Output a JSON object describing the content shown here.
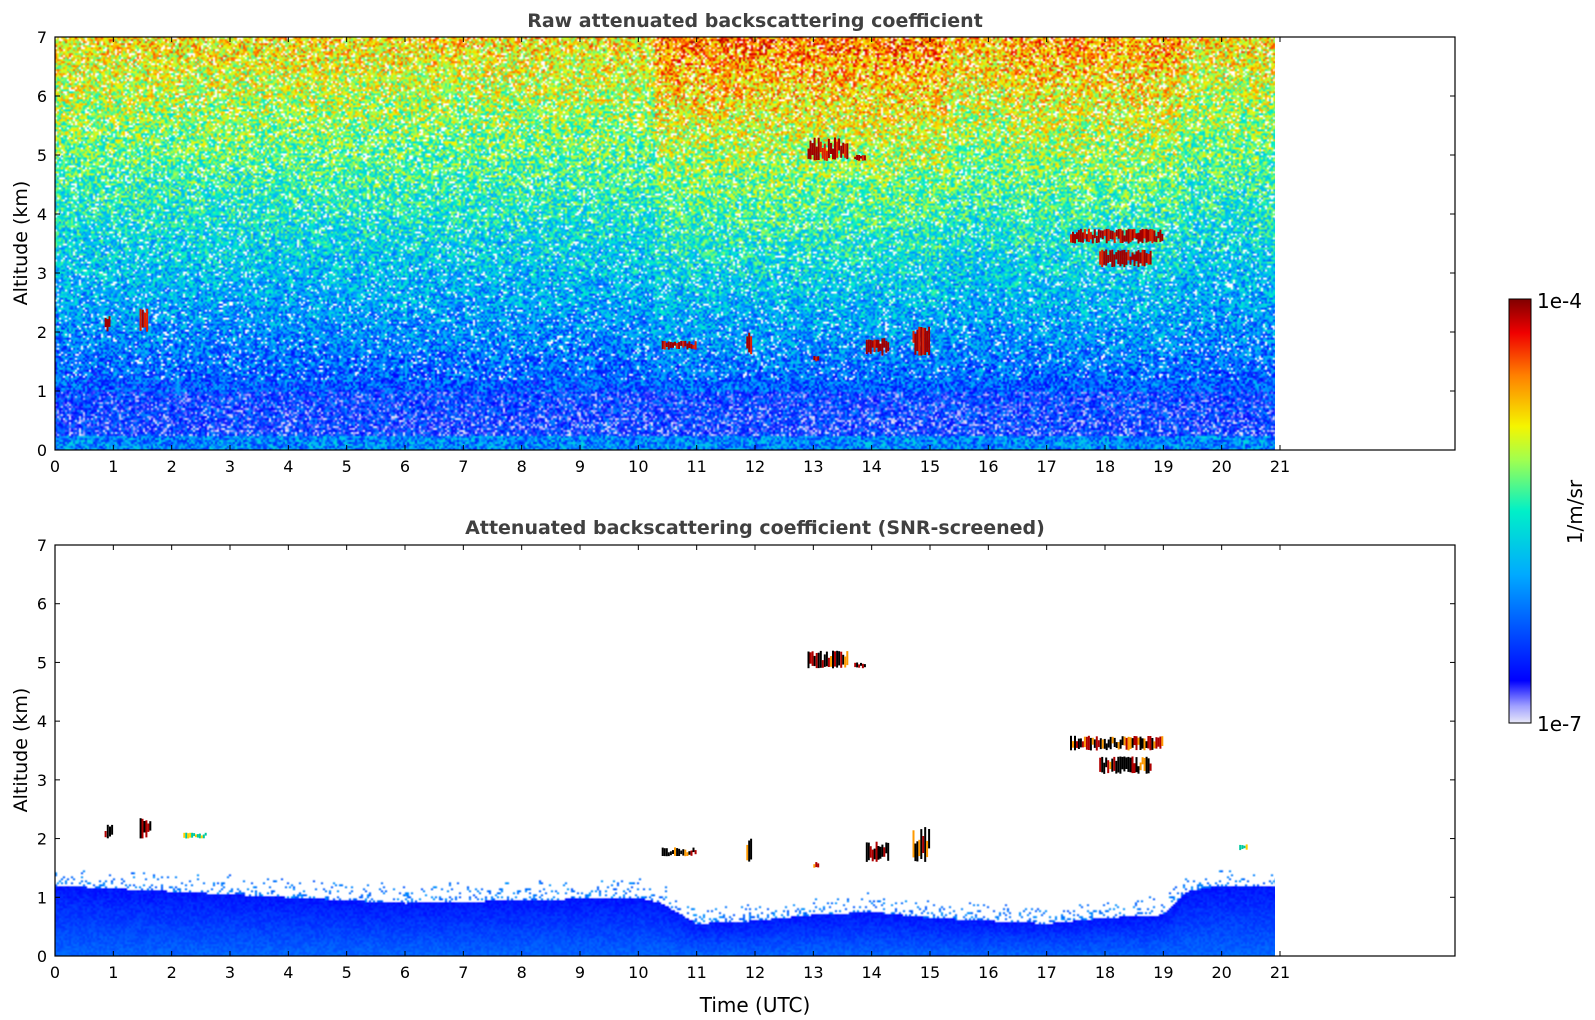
{
  "chart_data": [
    {
      "type": "heatmap",
      "title": "Raw attenuated backscattering coefficient",
      "ylabel": "Altitude (km)",
      "xlabel": "",
      "xlim": [
        0,
        24
      ],
      "ylim": [
        0,
        7
      ],
      "data_end_time": 21.15,
      "x_ticks": [
        "0",
        "1",
        "2",
        "3",
        "4",
        "5",
        "6",
        "7",
        "8",
        "9",
        "10",
        "11",
        "12",
        "13",
        "14",
        "15",
        "16",
        "17",
        "18",
        "19",
        "20",
        "21"
      ],
      "y_ticks": [
        "0",
        "1",
        "2",
        "3",
        "4",
        "5",
        "6",
        "7"
      ],
      "background_profile": "noisy signal; high values (yellow/red) aloft, decreasing to blue near surface; enhanced values between 10.3 and 15.2 UTC and 16.5-19.2 UTC",
      "features": [
        {
          "t_start": 0.85,
          "t_end": 0.95,
          "z_bottom": 2.0,
          "z_top": 2.3,
          "level": "high"
        },
        {
          "t_start": 1.45,
          "t_end": 1.6,
          "z_bottom": 2.0,
          "z_top": 2.4,
          "level": "high"
        },
        {
          "t_start": 10.4,
          "t_end": 11.0,
          "z_bottom": 1.7,
          "z_top": 1.85,
          "level": "high"
        },
        {
          "t_start": 11.85,
          "t_end": 11.95,
          "z_bottom": 1.6,
          "z_top": 2.0,
          "level": "high"
        },
        {
          "t_start": 13.0,
          "t_end": 13.1,
          "z_bottom": 1.5,
          "z_top": 1.6,
          "level": "high"
        },
        {
          "t_start": 13.9,
          "t_end": 14.3,
          "z_bottom": 1.6,
          "z_top": 1.9,
          "level": "high"
        },
        {
          "t_start": 14.7,
          "t_end": 15.0,
          "z_bottom": 1.6,
          "z_top": 2.1,
          "level": "high"
        },
        {
          "t_start": 12.9,
          "t_end": 13.6,
          "z_bottom": 4.9,
          "z_top": 5.3,
          "level": "high"
        },
        {
          "t_start": 13.7,
          "t_end": 13.9,
          "z_bottom": 4.9,
          "z_top": 5.0,
          "level": "high"
        },
        {
          "t_start": 17.4,
          "t_end": 19.0,
          "z_bottom": 3.5,
          "z_top": 3.75,
          "level": "high"
        },
        {
          "t_start": 17.9,
          "t_end": 18.8,
          "z_bottom": 3.1,
          "z_top": 3.4,
          "level": "high"
        }
      ]
    },
    {
      "type": "heatmap",
      "title": "Attenuated backscattering coefficient (SNR-screened)",
      "ylabel": "Altitude (km)",
      "xlabel": "Time (UTC)",
      "xlim": [
        0,
        24
      ],
      "ylim": [
        0,
        7
      ],
      "data_end_time": 21.15,
      "x_ticks": [
        "0",
        "1",
        "2",
        "3",
        "4",
        "5",
        "6",
        "7",
        "8",
        "9",
        "10",
        "11",
        "12",
        "13",
        "14",
        "15",
        "16",
        "17",
        "18",
        "19",
        "20",
        "21"
      ],
      "y_ticks": [
        "0",
        "1",
        "2",
        "3",
        "4",
        "5",
        "6",
        "7"
      ],
      "boundary_layer_top_km": [
        {
          "t": 0,
          "z": 1.2
        },
        {
          "t": 2,
          "z": 1.1
        },
        {
          "t": 4,
          "z": 1.0
        },
        {
          "t": 6,
          "z": 0.9
        },
        {
          "t": 8,
          "z": 0.95
        },
        {
          "t": 10,
          "z": 1.0
        },
        {
          "t": 10.4,
          "z": 0.9
        },
        {
          "t": 11,
          "z": 0.55
        },
        {
          "t": 12,
          "z": 0.6
        },
        {
          "t": 13,
          "z": 0.7
        },
        {
          "t": 14,
          "z": 0.75
        },
        {
          "t": 15,
          "z": 0.65
        },
        {
          "t": 16,
          "z": 0.6
        },
        {
          "t": 17,
          "z": 0.55
        },
        {
          "t": 18,
          "z": 0.65
        },
        {
          "t": 19,
          "z": 0.7
        },
        {
          "t": 19.4,
          "z": 1.1
        },
        {
          "t": 20,
          "z": 1.2
        },
        {
          "t": 21.15,
          "z": 1.2
        }
      ],
      "features": [
        {
          "t_start": 0.85,
          "t_end": 1.0,
          "z_bottom": 2.0,
          "z_top": 2.25,
          "level": "high"
        },
        {
          "t_start": 1.45,
          "t_end": 1.65,
          "z_bottom": 2.0,
          "z_top": 2.35,
          "level": "high"
        },
        {
          "t_start": 2.2,
          "t_end": 2.6,
          "z_bottom": 2.0,
          "z_top": 2.1,
          "level": "mid"
        },
        {
          "t_start": 10.4,
          "t_end": 11.0,
          "z_bottom": 1.7,
          "z_top": 1.85,
          "level": "high"
        },
        {
          "t_start": 11.85,
          "t_end": 11.95,
          "z_bottom": 1.6,
          "z_top": 2.0,
          "level": "high"
        },
        {
          "t_start": 13.0,
          "t_end": 13.1,
          "z_bottom": 1.5,
          "z_top": 1.6,
          "level": "high"
        },
        {
          "t_start": 13.9,
          "t_end": 14.3,
          "z_bottom": 1.6,
          "z_top": 1.95,
          "level": "high"
        },
        {
          "t_start": 14.7,
          "t_end": 15.0,
          "z_bottom": 1.6,
          "z_top": 2.2,
          "level": "high"
        },
        {
          "t_start": 12.9,
          "t_end": 13.6,
          "z_bottom": 4.9,
          "z_top": 5.2,
          "level": "high"
        },
        {
          "t_start": 13.7,
          "t_end": 13.9,
          "z_bottom": 4.9,
          "z_top": 5.0,
          "level": "high"
        },
        {
          "t_start": 17.4,
          "t_end": 19.0,
          "z_bottom": 3.5,
          "z_top": 3.75,
          "level": "high"
        },
        {
          "t_start": 17.9,
          "t_end": 18.8,
          "z_bottom": 3.1,
          "z_top": 3.4,
          "level": "high"
        },
        {
          "t_start": 20.3,
          "t_end": 20.45,
          "z_bottom": 1.8,
          "z_top": 1.9,
          "level": "mid"
        }
      ]
    }
  ],
  "colorbar": {
    "label": "1/m/sr",
    "max_label": "1e-4",
    "min_label": "1e-7",
    "scale": "log",
    "colormap": "jet"
  }
}
